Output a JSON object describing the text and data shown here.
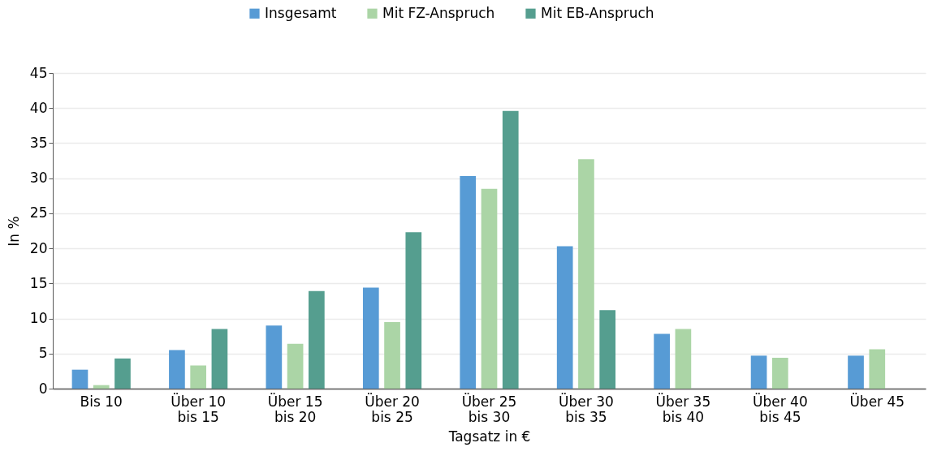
{
  "chart_data": {
    "type": "bar",
    "xlabel": "Tagsatz in €",
    "ylabel": "In %",
    "categories": [
      "Bis 10",
      "Über 10\nbis 15",
      "Über 15\nbis 20",
      "Über 20\nbis 25",
      "Über 25\nbis 30",
      "Über 30\nbis 35",
      "Über 35\nbis 40",
      "Über 40\nbis 45",
      "Über 45"
    ],
    "series": [
      {
        "name": "Insgesamt",
        "color": "#579bd5",
        "values": [
          2.7,
          5.5,
          9.0,
          14.4,
          30.3,
          20.3,
          7.8,
          4.7,
          4.7
        ]
      },
      {
        "name": "Mit FZ-Anspruch",
        "color": "#abd5a6",
        "values": [
          0.5,
          3.3,
          6.4,
          9.5,
          28.5,
          32.7,
          8.5,
          4.4,
          5.6
        ]
      },
      {
        "name": "Mit EB-Anspruch",
        "color": "#559e8f",
        "values": [
          4.3,
          8.5,
          13.9,
          22.3,
          39.6,
          11.2,
          0,
          0,
          null
        ]
      }
    ],
    "ylim": [
      0,
      45
    ],
    "yticks": [
      0,
      5,
      10,
      15,
      20,
      25,
      30,
      35,
      40,
      45
    ],
    "grid": "y",
    "legend": "top"
  }
}
